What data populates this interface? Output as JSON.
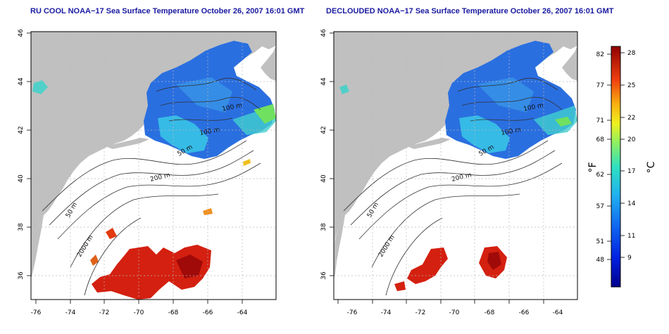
{
  "maps": [
    {
      "title": "RU COOL NOAA−17 Sea Surface Temperature October 26, 2007 16:01 GMT",
      "lat_ticks": [
        "46",
        "44",
        "42",
        "40",
        "38",
        "36"
      ],
      "lon_ticks": [
        "-76",
        "-74",
        "-72",
        "-70",
        "-68",
        "-66",
        "-64"
      ],
      "contour_labels": [
        "100 m",
        "100 m",
        "50 m",
        "200 m",
        "50 m",
        "2000 m"
      ]
    },
    {
      "title": "DECLOUDED NOAA−17 Sea Surface Temperature October 26, 2007 16:01 GMT",
      "lat_ticks": [
        "46",
        "44",
        "42",
        "40",
        "38",
        "36"
      ],
      "lon_ticks": [
        "-76",
        "-74",
        "-72",
        "-70",
        "-68",
        "-66",
        "-64"
      ],
      "contour_labels": [
        "100 m",
        "100 m",
        "50 m",
        "200 m",
        "50 m",
        "2000 m"
      ]
    }
  ],
  "colorbar": {
    "f_label": "°F",
    "c_label": "°C",
    "f_ticks": [
      "82",
      "77",
      "71",
      "68",
      "62",
      "57",
      "51",
      "48"
    ],
    "c_ticks": [
      "28",
      "25",
      "22",
      "20",
      "17",
      "14",
      "11",
      "9"
    ]
  },
  "colors": {
    "land": "#c0c0c0",
    "ocean_missing": "#ffffff",
    "title": "#1a1aa0",
    "cold": "#1f5bd6",
    "warm": "#d4160d"
  }
}
